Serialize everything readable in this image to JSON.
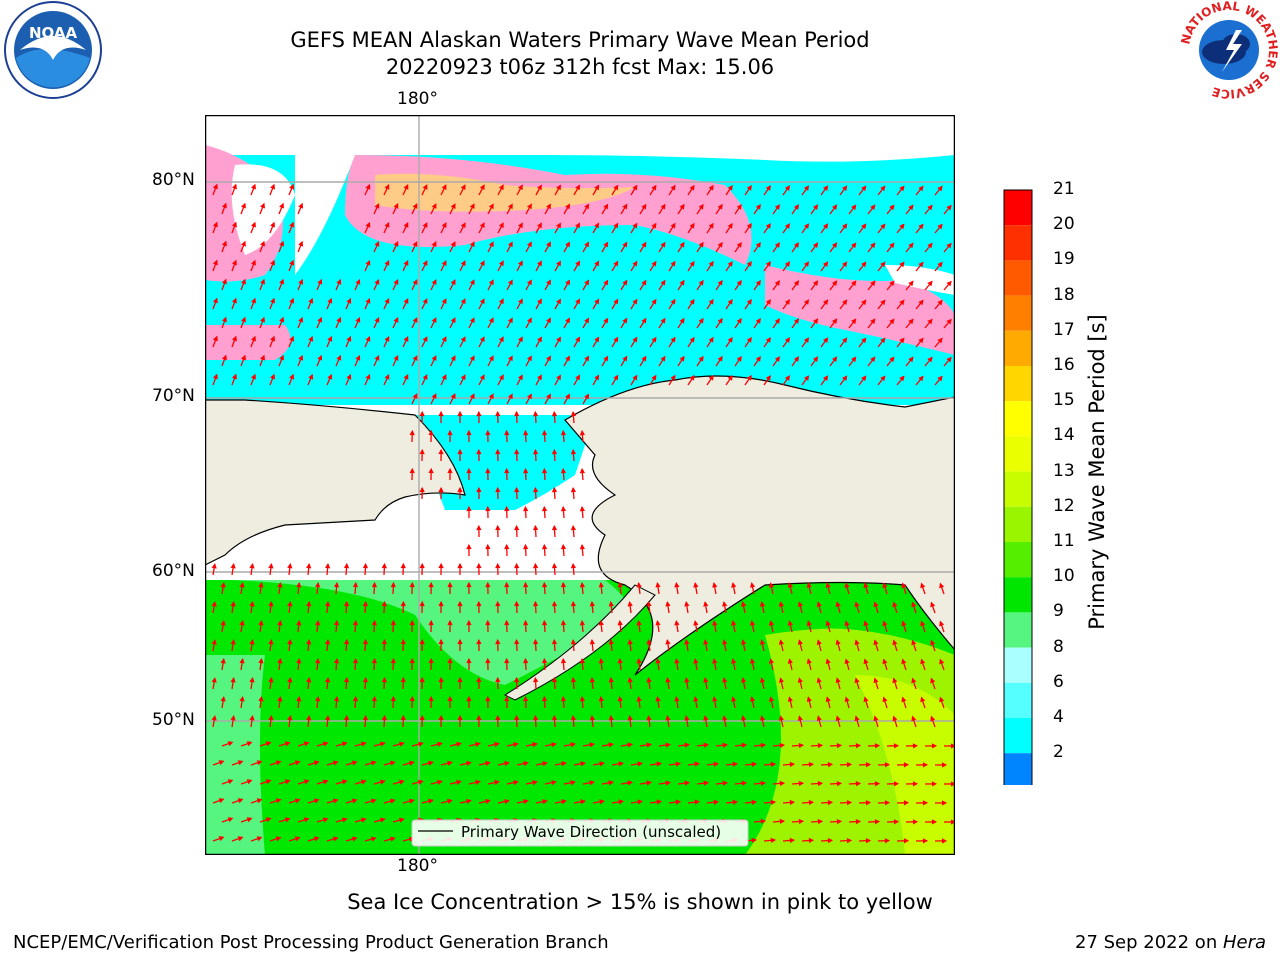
{
  "title": {
    "line1": "GEFS MEAN Alaskan Waters Primary Wave Mean Period",
    "line2": "20220923 t06z 312h fcst   Max: 15.06"
  },
  "map": {
    "lon_label_top": "180°",
    "lon_label_bottom": "180°",
    "lat_labels": [
      "80°N",
      "70°N",
      "60°N",
      "50°N"
    ],
    "legend": "Primary Wave Direction (unscaled)",
    "colors": {
      "land": "#efeddf",
      "open_water": "#00ffff",
      "mid_period": "#55f57f",
      "long_period": "#00e800",
      "ice": "#ffa0d0",
      "arrow": "#ff0000"
    }
  },
  "colorbar": {
    "title": "Primary Wave Mean Period [s]",
    "ticks": [
      "21",
      "20",
      "19",
      "18",
      "17",
      "16",
      "15",
      "14",
      "13",
      "12",
      "11",
      "10",
      "9",
      "8",
      "6",
      "4",
      "2"
    ],
    "colors": [
      "#ff0000",
      "#ff3000",
      "#ff5a00",
      "#ff8000",
      "#ffaa00",
      "#ffd600",
      "#ffff00",
      "#eaff00",
      "#c8fd00",
      "#99f500",
      "#55ee00",
      "#00e600",
      "#55f57f",
      "#aaffff",
      "#55ffff",
      "#00ffff",
      "#0085ff"
    ],
    "under_color": "#0000ff"
  },
  "caption": "Sea Ice Concentration > 15% is shown in pink to yellow",
  "footer": {
    "left": "NCEP/EMC/Verification Post Processing Product Generation Branch",
    "right_date": "27 Sep 2022 on ",
    "right_host": "Hera"
  },
  "logos": {
    "noaa": "NOAA",
    "nws_ring": "NATIONAL WEATHER SERVICE"
  }
}
